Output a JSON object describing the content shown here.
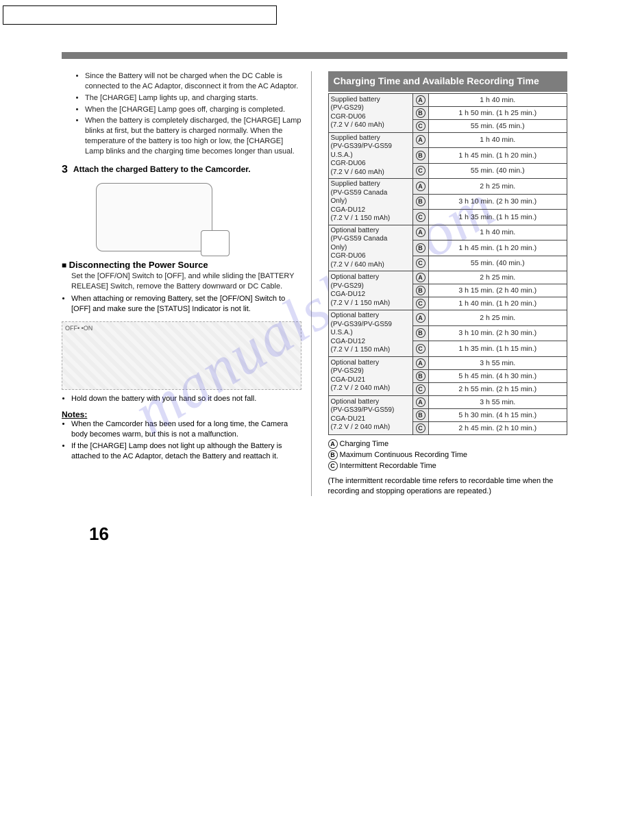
{
  "watermark": "manualslib.com",
  "page_number": "16",
  "left": {
    "top_bullets": [
      "Since the Battery will not be charged when the DC Cable is connected to the AC Adaptor, disconnect it from the AC Adaptor.",
      "The [CHARGE] Lamp lights up, and charging starts.",
      "When the [CHARGE] Lamp goes off, charging is completed.",
      "When the battery is completely discharged, the [CHARGE] Lamp blinks at first, but the battery is charged normally. When the temperature of the battery is too high or low, the [CHARGE] Lamp blinks and the charging time becomes longer than usual."
    ],
    "step_num": "3",
    "step_text": "Attach the charged Battery to the Camcorder.",
    "disconnect_heading": "Disconnecting the Power Source",
    "disconnect_body": "Set the [OFF/ON] Switch to [OFF], and while sliding the [BATTERY RELEASE] Switch, remove the Battery downward or DC Cable.",
    "disconnect_bullets": [
      "When attaching or removing Battery, set the [OFF/ON] Switch to [OFF] and make sure the [STATUS] Indicator is not lit."
    ],
    "offon_label": "OFF• •ON",
    "hold_bullet": "Hold down the battery with your hand so it does not fall.",
    "notes_heading": "Notes:",
    "notes": [
      "When the Camcorder has been used for a long time, the Camera body becomes warm, but this is not a malfunction.",
      "If the [CHARGE] Lamp does not light up although the Battery is attached to the AC Adaptor, detach the Battery and reattach it."
    ]
  },
  "right": {
    "heading": "Charging Time and Available Recording Time",
    "groups": [
      {
        "label_lines": [
          "Supplied battery",
          "(PV-GS29)",
          "CGR-DU06",
          "(7.2 V / 640 mAh)"
        ],
        "rows": [
          {
            "sym": "A",
            "val": "1 h 40 min."
          },
          {
            "sym": "B",
            "val": "1 h 50 min. (1 h 25 min.)"
          },
          {
            "sym": "C",
            "val": "55 min. (45 min.)"
          }
        ]
      },
      {
        "label_lines": [
          "Supplied battery",
          "(PV-GS39/PV-GS59",
          "U.S.A.)",
          "CGR-DU06",
          "(7.2 V / 640 mAh)"
        ],
        "rows": [
          {
            "sym": "A",
            "val": "1 h 40 min."
          },
          {
            "sym": "B",
            "val": "1 h 45 min. (1 h 20 min.)"
          },
          {
            "sym": "C",
            "val": "55 min. (40 min.)"
          }
        ]
      },
      {
        "label_lines": [
          "Supplied battery",
          "(PV-GS59 Canada",
          "Only)",
          "CGA-DU12",
          "(7.2 V / 1 150 mAh)"
        ],
        "rows": [
          {
            "sym": "A",
            "val": "2 h 25 min."
          },
          {
            "sym": "B",
            "val": "3 h 10 min. (2 h 30 min.)"
          },
          {
            "sym": "C",
            "val": "1 h 35 min. (1 h 15 min.)"
          }
        ]
      },
      {
        "label_lines": [
          "Optional battery",
          "(PV-GS59 Canada",
          "Only)",
          "CGR-DU06",
          "(7.2 V / 640 mAh)"
        ],
        "rows": [
          {
            "sym": "A",
            "val": "1 h 40 min."
          },
          {
            "sym": "B",
            "val": "1 h 45 min. (1 h 20 min.)"
          },
          {
            "sym": "C",
            "val": "55 min. (40 min.)"
          }
        ]
      },
      {
        "label_lines": [
          "Optional battery",
          "(PV-GS29)",
          "CGA-DU12",
          "(7.2 V / 1 150 mAh)"
        ],
        "rows": [
          {
            "sym": "A",
            "val": "2 h 25 min."
          },
          {
            "sym": "B",
            "val": "3 h 15 min. (2 h 40 min.)"
          },
          {
            "sym": "C",
            "val": "1 h 40 min. (1 h 20 min.)"
          }
        ]
      },
      {
        "label_lines": [
          "Optional battery",
          "(PV-GS39/PV-GS59",
          "U.S.A.)",
          "CGA-DU12",
          "(7.2 V / 1 150 mAh)"
        ],
        "rows": [
          {
            "sym": "A",
            "val": "2 h 25 min."
          },
          {
            "sym": "B",
            "val": "3 h 10 min. (2 h 30 min.)"
          },
          {
            "sym": "C",
            "val": "1 h 35 min. (1 h 15 min.)"
          }
        ]
      },
      {
        "label_lines": [
          "Optional battery",
          "(PV-GS29)",
          "CGA-DU21",
          "(7.2 V / 2 040 mAh)"
        ],
        "rows": [
          {
            "sym": "A",
            "val": "3 h 55 min."
          },
          {
            "sym": "B",
            "val": "5 h 45 min. (4 h 30 min.)"
          },
          {
            "sym": "C",
            "val": "2 h 55 min. (2 h 15 min.)"
          }
        ]
      },
      {
        "label_lines": [
          "Optional battery",
          "(PV-GS39/PV-GS59)",
          "CGA-DU21",
          "(7.2 V / 2 040 mAh)"
        ],
        "rows": [
          {
            "sym": "A",
            "val": "3 h 55 min."
          },
          {
            "sym": "B",
            "val": "5 h 30 min. (4 h 15 min.)"
          },
          {
            "sym": "C",
            "val": "2 h 45 min. (2 h 10 min.)"
          }
        ]
      }
    ],
    "legend": [
      {
        "sym": "A",
        "text": "Charging Time"
      },
      {
        "sym": "B",
        "text": "Maximum Continuous Recording Time"
      },
      {
        "sym": "C",
        "text": "Intermittent Recordable Time"
      }
    ],
    "footnote": "(The intermittent recordable time refers to recordable time when the recording and stopping operations are repeated.)"
  },
  "colors": {
    "bar": "#7a7a7a",
    "heading_bg": "#7d7d7d",
    "heading_fg": "#ffffff",
    "border": "#444444",
    "sym_bg": "#e8e8e8",
    "lbl_bg": "#f4f4f4",
    "watermark": "rgba(90,90,220,0.22)"
  }
}
